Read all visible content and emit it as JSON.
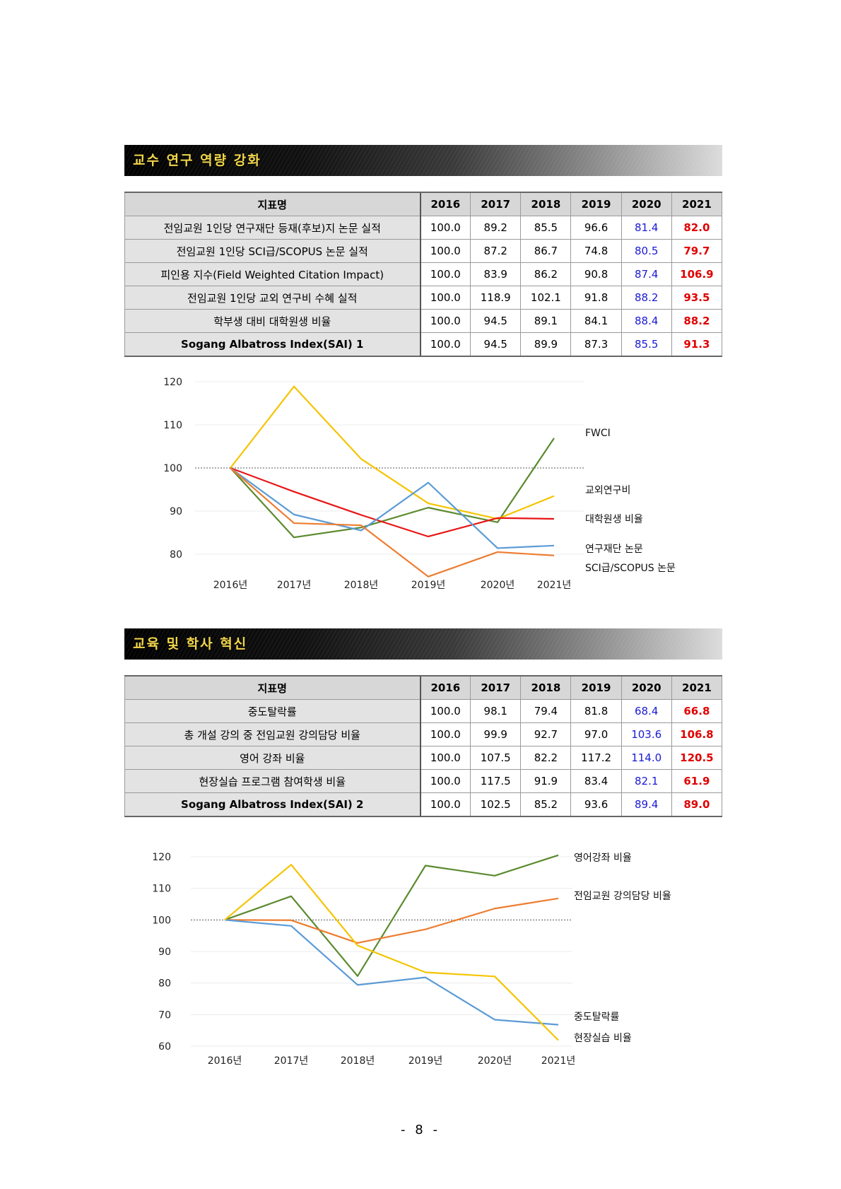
{
  "section1": {
    "title": "교수 연구 역량 강화",
    "table": {
      "headers": [
        "지표명",
        "2016",
        "2017",
        "2018",
        "2019",
        "2020",
        "2021"
      ],
      "rows": [
        {
          "name": "전임교원 1인당 연구재단 등재(후보)지 논문 실적",
          "v": [
            "100.0",
            "89.2",
            "85.5",
            "96.6",
            "81.4",
            "82.0"
          ]
        },
        {
          "name": "전임교원 1인당 SCI급/SCOPUS 논문 실적",
          "v": [
            "100.0",
            "87.2",
            "86.7",
            "74.8",
            "80.5",
            "79.7"
          ]
        },
        {
          "name": "피인용 지수(Field Weighted Citation Impact)",
          "v": [
            "100.0",
            "83.9",
            "86.2",
            "90.8",
            "87.4",
            "106.9"
          ]
        },
        {
          "name": "전임교원 1인당 교외 연구비 수혜 실적",
          "v": [
            "100.0",
            "118.9",
            "102.1",
            "91.8",
            "88.2",
            "93.5"
          ]
        },
        {
          "name": "학부생 대비 대학원생 비율",
          "v": [
            "100.0",
            "94.5",
            "89.1",
            "84.1",
            "88.4",
            "88.2"
          ]
        },
        {
          "name": "Sogang Albatross Index(SAI) 1",
          "v": [
            "100.0",
            "94.5",
            "89.9",
            "87.3",
            "85.5",
            "91.3"
          ]
        }
      ]
    }
  },
  "section2": {
    "title": "교육 및 학사 혁신",
    "table": {
      "headers": [
        "지표명",
        "2016",
        "2017",
        "2018",
        "2019",
        "2020",
        "2021"
      ],
      "rows": [
        {
          "name": "중도탈락률",
          "v": [
            "100.0",
            "98.1",
            "79.4",
            "81.8",
            "68.4",
            "66.8"
          ]
        },
        {
          "name": "총 개설 강의 중 전임교원 강의담당 비율",
          "v": [
            "100.0",
            "99.9",
            "92.7",
            "97.0",
            "103.6",
            "106.8"
          ]
        },
        {
          "name": "영어 강좌 비율",
          "v": [
            "100.0",
            "107.5",
            "82.2",
            "117.2",
            "114.0",
            "120.5"
          ]
        },
        {
          "name": "현장실습 프로그램 참여학생 비율",
          "v": [
            "100.0",
            "117.5",
            "91.9",
            "83.4",
            "82.1",
            "61.9"
          ]
        },
        {
          "name": "Sogang Albatross Index(SAI) 2",
          "v": [
            "100.0",
            "102.5",
            "85.2",
            "93.6",
            "89.4",
            "89.0"
          ]
        }
      ]
    }
  },
  "chart_data": [
    {
      "type": "line",
      "categories": [
        "2016년",
        "2017년",
        "2018년",
        "2019년",
        "2020년",
        "2021년"
      ],
      "yticks": [
        "120",
        "110",
        "100",
        "90",
        "80"
      ],
      "ylim": [
        80,
        120
      ],
      "grid": true,
      "reference_line": 100,
      "legend": "right, labels at line ends",
      "series": [
        {
          "name": "FWCI",
          "color": "#5b8a2e",
          "values": [
            100.0,
            83.9,
            86.2,
            90.8,
            87.4,
            106.9
          ]
        },
        {
          "name": "교외연구비",
          "color": "#f5c400",
          "values": [
            100.0,
            118.9,
            102.1,
            91.8,
            88.2,
            93.5
          ]
        },
        {
          "name": "대학원생 비율",
          "color": "#e81515",
          "values": [
            100.0,
            94.5,
            89.1,
            84.1,
            88.4,
            88.2
          ]
        },
        {
          "name": "연구재단 논문",
          "color": "#5b9bd5",
          "values": [
            100.0,
            89.2,
            85.5,
            96.6,
            81.4,
            82.0
          ]
        },
        {
          "name": "SCI급/SCOPUS 논문",
          "color": "#ed7d31",
          "values": [
            100.0,
            87.2,
            86.7,
            74.8,
            80.5,
            79.7
          ]
        }
      ]
    },
    {
      "type": "line",
      "categories": [
        "2016년",
        "2017년",
        "2018년",
        "2019년",
        "2020년",
        "2021년"
      ],
      "yticks": [
        "120",
        "110",
        "100",
        "90",
        "80",
        "70",
        "60"
      ],
      "ylim": [
        60,
        120
      ],
      "grid": true,
      "reference_line": 100,
      "legend": "right, labels at line ends",
      "series": [
        {
          "name": "영어강좌 비율",
          "color": "#5b8a2e",
          "values": [
            100.0,
            107.5,
            82.2,
            117.2,
            114.0,
            120.5
          ]
        },
        {
          "name": "전임교원 강의담당 비율",
          "color": "#ed7d31",
          "values": [
            100.0,
            99.9,
            92.7,
            97.0,
            103.6,
            106.8
          ]
        },
        {
          "name": "중도탈락률",
          "color": "#5b9bd5",
          "values": [
            100.0,
            98.1,
            79.4,
            81.8,
            68.4,
            66.8
          ]
        },
        {
          "name": "현장실습 비율",
          "color": "#f5c400",
          "values": [
            100.0,
            117.5,
            91.9,
            83.4,
            82.1,
            61.9
          ]
        }
      ]
    }
  ],
  "page": {
    "number": "- 8 -"
  }
}
